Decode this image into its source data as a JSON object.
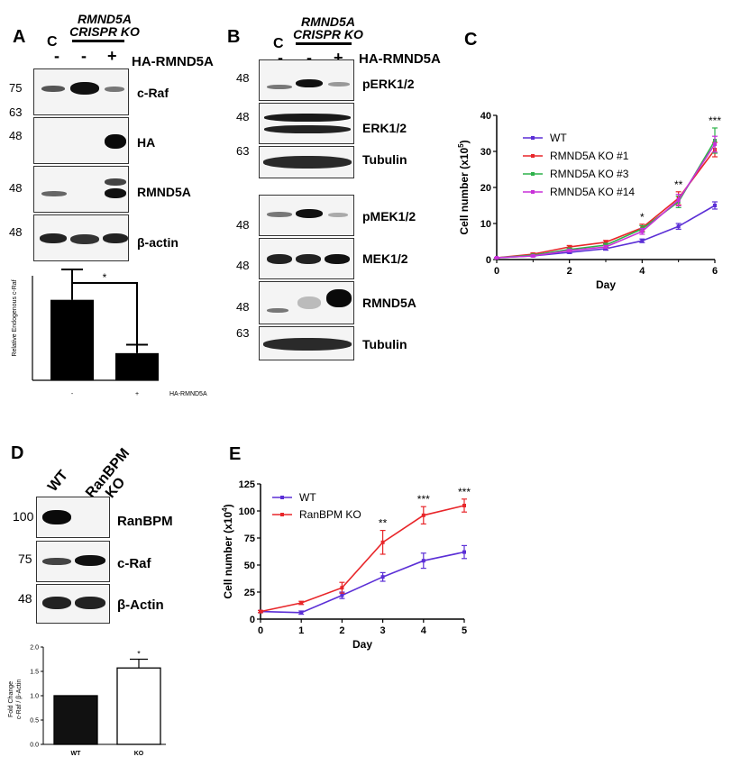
{
  "panels": {
    "A": {
      "letter": "A",
      "header": {
        "line1": "RMND5A",
        "line2": "CRISPR KO",
        "control": "C",
        "lanes": [
          "-",
          "-",
          "+"
        ],
        "construct": "HA-RMND5A"
      },
      "blots": [
        {
          "label": "c-Raf",
          "mw_top": "75",
          "mw_bottom": "63"
        },
        {
          "label": "HA",
          "mw_top": "48"
        },
        {
          "label": "RMND5A",
          "mw_top": "48"
        },
        {
          "label": "β-actin",
          "mw_top": "48"
        }
      ],
      "bar_chart": {
        "ylabel": "Relative Endogenous c-Raf",
        "categories": [
          "-",
          "+"
        ],
        "values": [
          7.7,
          2.6
        ],
        "errors": [
          2.9,
          0.8
        ],
        "ylim": [
          0,
          30
        ],
        "significance": "*",
        "x_suffix": "HA-RMND5A"
      }
    },
    "B": {
      "letter": "B",
      "header": {
        "line1": "RMND5A",
        "line2": "CRISPR KO",
        "control": "C",
        "lanes": [
          "-",
          "-",
          "+"
        ],
        "construct": "HA-RMND5A"
      },
      "blots": [
        {
          "label": "pERK1/2",
          "mw": "48"
        },
        {
          "label": "ERK1/2",
          "mw": "48"
        },
        {
          "label": "Tubulin",
          "mw": "63"
        },
        {
          "label": "pMEK1/2",
          "mw": "48"
        },
        {
          "label": "MEK1/2",
          "mw": "48"
        },
        {
          "label": "RMND5A",
          "mw": "48"
        },
        {
          "label": "Tubulin",
          "mw": "63"
        }
      ]
    },
    "D": {
      "letter": "D",
      "header": {
        "lane1": "WT",
        "lane2_line1": "RanBPM",
        "lane2_line2": "KO"
      },
      "blots": [
        {
          "label": "RanBPM",
          "mw": "100"
        },
        {
          "label": "c-Raf",
          "mw": "75"
        },
        {
          "label": "β-Actin",
          "mw": "48"
        }
      ],
      "bar_chart": {
        "ylabel_line1": "Fold Change",
        "ylabel_line2": "c-Raf / β-Actin",
        "categories": [
          "WT",
          "KO"
        ],
        "values": [
          1.0,
          1.57
        ],
        "errors": [
          0,
          0.18
        ],
        "colors": [
          "#111111",
          "#ffffff"
        ],
        "ylim": [
          0,
          2.0
        ],
        "yticks": [
          "0.0",
          "0.5",
          "1.0",
          "1.5",
          "2.0"
        ],
        "significance": "*"
      }
    }
  },
  "chart_data": [
    {
      "panel": "C",
      "type": "line",
      "xlabel": "Day",
      "ylabel": "Cell number (x10",
      "ylabel_exp": "5",
      "ylabel_close": ")",
      "x": [
        0,
        1,
        2,
        3,
        4,
        5,
        6
      ],
      "xlim": [
        0,
        6
      ],
      "xticks": [
        "0",
        "2",
        "4",
        "6"
      ],
      "ylim": [
        0,
        40
      ],
      "yticks": [
        "0",
        "10",
        "20",
        "30",
        "40"
      ],
      "series": [
        {
          "name": "WT",
          "color": "#5b2fd6",
          "values": [
            0.5,
            1.0,
            2.0,
            3.0,
            5.2,
            9.2,
            15.0
          ],
          "errors": [
            0.1,
            0.2,
            0.3,
            0.4,
            0.5,
            0.8,
            1.0
          ]
        },
        {
          "name": "RMND5A KO #1",
          "color": "#e8262a",
          "values": [
            0.5,
            1.5,
            3.5,
            4.8,
            8.8,
            17.0,
            30.5
          ],
          "errors": [
            0.1,
            0.3,
            0.4,
            0.5,
            1.0,
            1.8,
            2.0
          ]
        },
        {
          "name": "RMND5A KO #3",
          "color": "#2db24a",
          "values": [
            0.5,
            1.2,
            2.8,
            4.0,
            8.5,
            16.0,
            33.0
          ],
          "errors": [
            0.1,
            0.2,
            0.4,
            0.5,
            0.9,
            1.6,
            3.5
          ]
        },
        {
          "name": "RMND5A KO #14",
          "color": "#c831d8",
          "values": [
            0.5,
            1.0,
            2.5,
            3.5,
            7.8,
            16.5,
            32.0
          ],
          "errors": [
            0.1,
            0.2,
            0.3,
            0.4,
            0.8,
            1.6,
            2.2
          ]
        }
      ],
      "annotations": [
        {
          "x": 4,
          "text": "*"
        },
        {
          "x": 5,
          "text": "**"
        },
        {
          "x": 6,
          "text": "***"
        }
      ],
      "legend": "top-left"
    },
    {
      "panel": "E",
      "type": "line",
      "xlabel": "Day",
      "ylabel": "Cell number (x10",
      "ylabel_exp": "4",
      "ylabel_close": ")",
      "x": [
        0,
        1,
        2,
        3,
        4,
        5
      ],
      "xlim": [
        0,
        5
      ],
      "xticks": [
        "0",
        "1",
        "2",
        "3",
        "4",
        "5"
      ],
      "ylim": [
        0,
        125
      ],
      "yticks": [
        "0",
        "25",
        "50",
        "75",
        "100",
        "125"
      ],
      "series": [
        {
          "name": "WT",
          "color": "#5b2fd6",
          "values": [
            7,
            6,
            22,
            39,
            54,
            62
          ],
          "errors": [
            1,
            1.5,
            3,
            4,
            7,
            6
          ]
        },
        {
          "name": "RanBPM KO",
          "color": "#e8262a",
          "values": [
            7,
            15,
            29,
            71,
            96,
            105
          ],
          "errors": [
            1,
            1.5,
            5,
            11,
            8,
            6
          ]
        }
      ],
      "annotations": [
        {
          "x": 3,
          "text": "**"
        },
        {
          "x": 4,
          "text": "***"
        },
        {
          "x": 5,
          "text": "***"
        }
      ],
      "legend": "top-left"
    }
  ]
}
